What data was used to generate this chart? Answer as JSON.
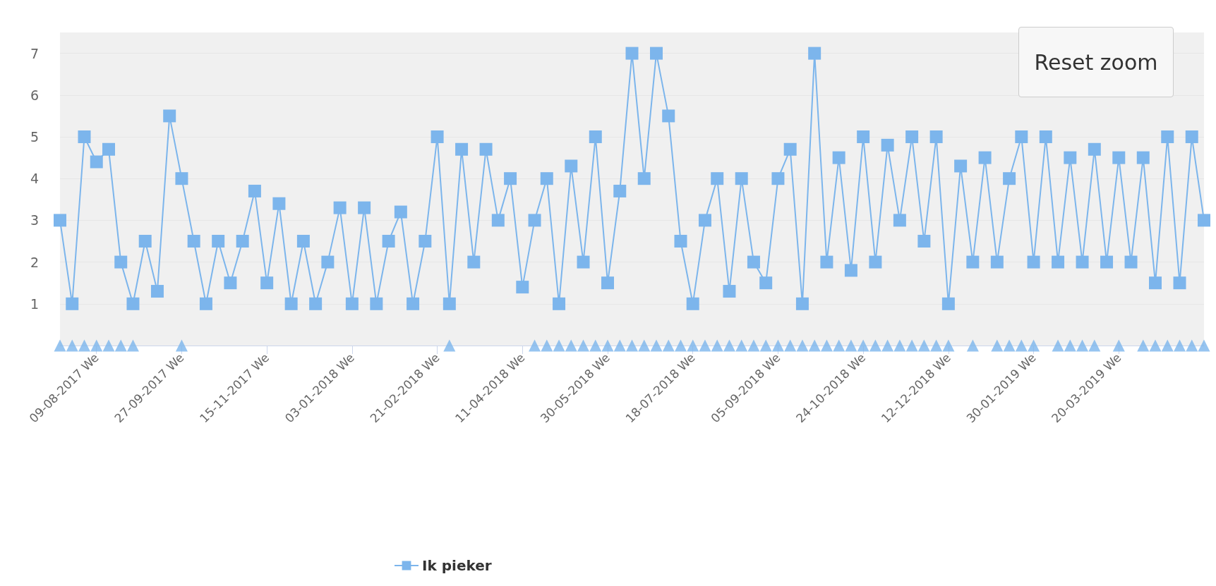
{
  "chart_data": {
    "type": "line",
    "categories": [
      null,
      null,
      null,
      "09-08-2017 We",
      null,
      null,
      null,
      null,
      null,
      null,
      "27-09-2017 We",
      null,
      null,
      null,
      null,
      null,
      null,
      "15-11-2017 We",
      null,
      null,
      null,
      null,
      null,
      null,
      "03-01-2018 We",
      null,
      null,
      null,
      null,
      null,
      null,
      "21-02-2018 We",
      null,
      null,
      null,
      null,
      null,
      null,
      "11-04-2018 We",
      null,
      null,
      null,
      null,
      null,
      null,
      "30-05-2018 We",
      null,
      null,
      null,
      null,
      null,
      null,
      "18-07-2018 We",
      null,
      null,
      null,
      null,
      null,
      null,
      "05-09-2018 We",
      null,
      null,
      null,
      null,
      null,
      null,
      "24-10-2018 We",
      null,
      null,
      null,
      null,
      null,
      null,
      "12-12-2018 We",
      null,
      null,
      null,
      null,
      null,
      null,
      "30-01-2019 We",
      null,
      null,
      null,
      null,
      null,
      null,
      "20-03-2019 We",
      null,
      null,
      null,
      null,
      null,
      null,
      null
    ],
    "series": [
      {
        "name": "Ik pieker",
        "color": "#7cb5ec",
        "marker": "square",
        "values": [
          3,
          1,
          5,
          4.4,
          4.7,
          2,
          1,
          2.5,
          1.3,
          5.5,
          4,
          2.5,
          1,
          2.5,
          1.5,
          2.5,
          3.7,
          1.5,
          3.4,
          1,
          2.5,
          1,
          2,
          3.3,
          1,
          3.3,
          1,
          2.5,
          3.2,
          1,
          2.5,
          5,
          1,
          4.7,
          2,
          4.7,
          3,
          4,
          1.4,
          3,
          4,
          1,
          4.3,
          2,
          5,
          1.5,
          3.7,
          7,
          4,
          7,
          5.5,
          2.5,
          1,
          3,
          4,
          1.3,
          4,
          2,
          1.5,
          4,
          4.7,
          1,
          7,
          2,
          4.5,
          1.8,
          5,
          2,
          4.8,
          3,
          5,
          2.5,
          5,
          1,
          4.3,
          2,
          4.5,
          2,
          4,
          5,
          2,
          5,
          2,
          4.5,
          2,
          4.7,
          2,
          4.5,
          2,
          4.5,
          1.5,
          5,
          1.5,
          5,
          3
        ]
      },
      {
        "color": "#7cb5ec",
        "type": "scatter",
        "marker": "triangle",
        "values": [
          0,
          0,
          0,
          0,
          0,
          0,
          0,
          null,
          null,
          null,
          0,
          null,
          null,
          null,
          null,
          null,
          null,
          null,
          null,
          null,
          null,
          null,
          null,
          null,
          null,
          null,
          null,
          null,
          null,
          null,
          null,
          null,
          0,
          null,
          null,
          null,
          null,
          null,
          null,
          0,
          0,
          0,
          0,
          0,
          0,
          0,
          0,
          0,
          0,
          0,
          0,
          0,
          0,
          0,
          0,
          0,
          0,
          0,
          0,
          0,
          0,
          0,
          0,
          0,
          0,
          0,
          0,
          0,
          0,
          0,
          0,
          0,
          0,
          0,
          null,
          0,
          null,
          0,
          0,
          0,
          0,
          null,
          0,
          0,
          0,
          0,
          null,
          0,
          null,
          0,
          0,
          0,
          0,
          0,
          0
        ]
      }
    ],
    "ylim": [
      0,
      7.5
    ],
    "yticks": [
      1,
      2,
      3,
      4,
      5,
      6,
      7
    ],
    "grid": "y",
    "legend": "bottom",
    "annotations": [
      "Reset zoom"
    ]
  }
}
